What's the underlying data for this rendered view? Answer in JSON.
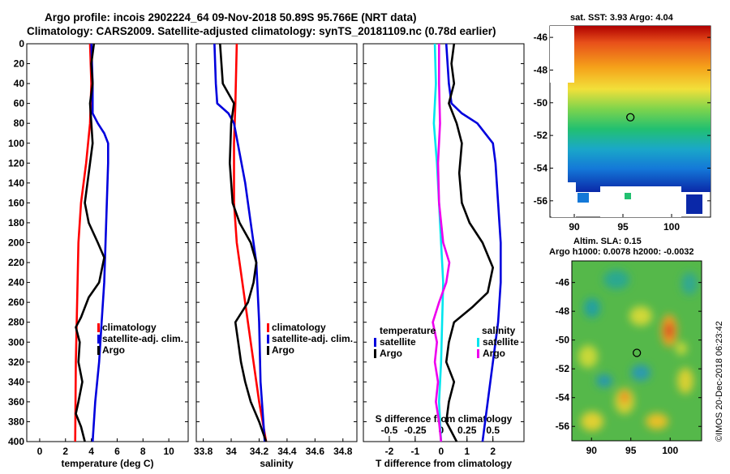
{
  "header": {
    "line1": "Argo profile: incois 2902224_64 09-Nov-2018 50.89S 95.766E (NRT data)",
    "line2": "Climatology: CARS2009. Satellite-adjusted climatology: synTS_20181109.nc (0.78d earlier)"
  },
  "colors": {
    "clim": "#ff0000",
    "sat": "#0000dd",
    "argo": "#000000",
    "sat_s": "#00e5ee",
    "magenta": "#ee00ee"
  },
  "chart_data": [
    {
      "type": "line",
      "name": "temperature",
      "xlabel": "temperature (deg C)",
      "ylabel": "depth",
      "xlim": [
        -1,
        11.5
      ],
      "ylim": [
        400,
        0
      ],
      "xticks": [
        "0",
        "2",
        "4",
        "6",
        "8",
        "10"
      ],
      "xtick_values": [
        0,
        2,
        4,
        6,
        8,
        10
      ],
      "yticks": [
        0,
        20,
        40,
        60,
        80,
        100,
        120,
        140,
        160,
        180,
        200,
        220,
        240,
        260,
        280,
        300,
        320,
        340,
        360,
        380,
        400
      ],
      "legend": [
        "climatology",
        "satellite-adj. clim.",
        "Argo"
      ],
      "series": [
        {
          "name": "climatology",
          "color": "clim",
          "points": [
            [
              3.9,
              0
            ],
            [
              4.0,
              40
            ],
            [
              3.9,
              80
            ],
            [
              3.6,
              120
            ],
            [
              3.2,
              160
            ],
            [
              3.0,
              200
            ],
            [
              2.9,
              260
            ],
            [
              2.8,
              320
            ],
            [
              2.75,
              400
            ]
          ]
        },
        {
          "name": "satellite-adj. clim.",
          "color": "sat",
          "points": [
            [
              4.0,
              0
            ],
            [
              4.1,
              40
            ],
            [
              4.1,
              70
            ],
            [
              4.5,
              80
            ],
            [
              5.0,
              90
            ],
            [
              5.3,
              100
            ],
            [
              5.3,
              120
            ],
            [
              5.2,
              160
            ],
            [
              5.1,
              200
            ],
            [
              5.0,
              240
            ],
            [
              4.8,
              280
            ],
            [
              4.6,
              320
            ],
            [
              4.3,
              360
            ],
            [
              4.1,
              400
            ]
          ]
        },
        {
          "name": "Argo",
          "color": "argo",
          "points": [
            [
              4.2,
              0
            ],
            [
              4.0,
              20
            ],
            [
              4.1,
              40
            ],
            [
              3.9,
              60
            ],
            [
              4.0,
              80
            ],
            [
              4.1,
              100
            ],
            [
              3.8,
              130
            ],
            [
              3.5,
              160
            ],
            [
              3.8,
              180
            ],
            [
              4.5,
              200
            ],
            [
              5.0,
              215
            ],
            [
              4.6,
              240
            ],
            [
              3.8,
              255
            ],
            [
              3.2,
              275
            ],
            [
              2.8,
              285
            ],
            [
              3.1,
              300
            ],
            [
              3.0,
              320
            ],
            [
              3.3,
              340
            ],
            [
              3.0,
              360
            ],
            [
              2.8,
              372
            ],
            [
              3.2,
              385
            ],
            [
              3.5,
              400
            ]
          ]
        }
      ]
    },
    {
      "type": "line",
      "name": "salinity",
      "xlabel": "salinity",
      "xlim": [
        33.75,
        34.9
      ],
      "ylim": [
        400,
        0
      ],
      "xticks": [
        "33.8",
        "34",
        "34.2",
        "34.4",
        "34.6",
        "34.8"
      ],
      "xtick_values": [
        33.8,
        34.0,
        34.2,
        34.4,
        34.6,
        34.8
      ],
      "legend": [
        "climatology",
        "satellite-adj. clim.",
        "Argo"
      ],
      "series": [
        {
          "name": "climatology",
          "color": "clim",
          "points": [
            [
              34.04,
              0
            ],
            [
              34.03,
              60
            ],
            [
              34.02,
              100
            ],
            [
              34.02,
              160
            ],
            [
              34.04,
              200
            ],
            [
              34.08,
              240
            ],
            [
              34.14,
              300
            ],
            [
              34.2,
              360
            ],
            [
              34.25,
              400
            ]
          ]
        },
        {
          "name": "satellite-adj. clim.",
          "color": "sat",
          "points": [
            [
              33.88,
              0
            ],
            [
              33.89,
              40
            ],
            [
              33.9,
              60
            ],
            [
              33.98,
              70
            ],
            [
              34.02,
              80
            ],
            [
              34.06,
              110
            ],
            [
              34.1,
              140
            ],
            [
              34.14,
              180
            ],
            [
              34.18,
              220
            ],
            [
              34.2,
              280
            ],
            [
              34.21,
              340
            ],
            [
              34.24,
              400
            ]
          ]
        },
        {
          "name": "Argo",
          "color": "argo",
          "points": [
            [
              33.92,
              0
            ],
            [
              33.93,
              20
            ],
            [
              33.94,
              40
            ],
            [
              34.02,
              60
            ],
            [
              34.0,
              80
            ],
            [
              33.99,
              120
            ],
            [
              34.01,
              160
            ],
            [
              34.06,
              180
            ],
            [
              34.14,
              200
            ],
            [
              34.18,
              220
            ],
            [
              34.16,
              240
            ],
            [
              34.12,
              260
            ],
            [
              34.03,
              280
            ],
            [
              34.05,
              300
            ],
            [
              34.07,
              320
            ],
            [
              34.1,
              340
            ],
            [
              34.14,
              360
            ],
            [
              34.2,
              380
            ],
            [
              34.25,
              400
            ]
          ]
        }
      ]
    },
    {
      "type": "line",
      "name": "difference from climatology",
      "xlabel": "T difference from climatology",
      "secondary_xlabel": "S difference from climatology",
      "xlim": [
        -3,
        3.2
      ],
      "ylim": [
        400,
        0
      ],
      "xticks": [
        "-2",
        "-1",
        "0",
        "1",
        "2"
      ],
      "xtick_values": [
        -2,
        -1,
        0,
        1,
        2
      ],
      "secondary_xticks": [
        "-0.5",
        "-0.25",
        "0",
        "0.25",
        "0.5"
      ],
      "secondary_xtick_values": [
        -0.5,
        -0.25,
        0,
        0.25,
        0.5
      ],
      "secondary_xlim": [
        -0.75,
        0.8
      ],
      "legend_left": {
        "title": "temperature",
        "items": [
          "satellite",
          "Argo"
        ]
      },
      "legend_right": {
        "title": "salinity",
        "items": [
          "satellite",
          "Argo"
        ]
      },
      "series": [
        {
          "name": "temperature satellite",
          "color": "sat",
          "points": [
            [
              0.2,
              0
            ],
            [
              0.3,
              40
            ],
            [
              0.4,
              60
            ],
            [
              0.8,
              70
            ],
            [
              1.4,
              80
            ],
            [
              2.0,
              100
            ],
            [
              2.1,
              120
            ],
            [
              2.2,
              160
            ],
            [
              2.3,
              200
            ],
            [
              2.3,
              240
            ],
            [
              2.2,
              280
            ],
            [
              2.0,
              320
            ],
            [
              1.8,
              360
            ],
            [
              1.6,
              400
            ]
          ]
        },
        {
          "name": "temperature Argo",
          "color": "argo",
          "points": [
            [
              0.5,
              0
            ],
            [
              0.4,
              20
            ],
            [
              0.5,
              40
            ],
            [
              0.3,
              60
            ],
            [
              0.6,
              80
            ],
            [
              0.8,
              100
            ],
            [
              0.7,
              130
            ],
            [
              0.8,
              160
            ],
            [
              1.1,
              180
            ],
            [
              1.6,
              200
            ],
            [
              2.0,
              225
            ],
            [
              1.8,
              250
            ],
            [
              1.2,
              265
            ],
            [
              0.5,
              280
            ],
            [
              0.3,
              300
            ],
            [
              0.2,
              320
            ],
            [
              0.5,
              340
            ],
            [
              0.3,
              360
            ],
            [
              0.2,
              380
            ],
            [
              0.6,
              400
            ]
          ]
        },
        {
          "name": "salinity satellite",
          "color": "sat_s",
          "points": [
            [
              -0.06,
              0
            ],
            [
              -0.05,
              40
            ],
            [
              -0.07,
              80
            ],
            [
              -0.04,
              120
            ],
            [
              -0.02,
              160
            ],
            [
              0.0,
              200
            ],
            [
              0.02,
              240
            ],
            [
              0.01,
              280
            ],
            [
              0.0,
              320
            ],
            [
              -0.02,
              360
            ],
            [
              0.0,
              400
            ]
          ]
        },
        {
          "name": "salinity Argo",
          "color": "magenta",
          "points": [
            [
              -0.02,
              0
            ],
            [
              -0.02,
              40
            ],
            [
              -0.01,
              80
            ],
            [
              -0.03,
              120
            ],
            [
              -0.02,
              160
            ],
            [
              0.02,
              200
            ],
            [
              0.08,
              220
            ],
            [
              0.05,
              240
            ],
            [
              -0.02,
              260
            ],
            [
              -0.08,
              280
            ],
            [
              -0.04,
              300
            ],
            [
              -0.06,
              320
            ],
            [
              -0.03,
              340
            ],
            [
              -0.05,
              360
            ],
            [
              -0.02,
              380
            ],
            [
              0.0,
              400
            ]
          ]
        }
      ]
    }
  ],
  "sst_map": {
    "title": "sat. SST: 3.93 Argo: 4.04",
    "yticks": [
      "-46",
      "-48",
      "-50",
      "-52",
      "-54",
      "-56"
    ],
    "ytick_values": [
      -46,
      -48,
      -50,
      -52,
      -54,
      -56
    ],
    "xticks": [
      "90",
      "95",
      "100"
    ],
    "xtick_values": [
      90,
      95,
      100
    ],
    "lon_range": [
      87.5,
      104
    ],
    "lat_range": [
      -57,
      -45.3
    ],
    "argo_lon": 95.766,
    "argo_lat": -50.89
  },
  "sla_map": {
    "title1": "Altim. SLA: 0.15",
    "title2": "Argo h1000: 0.0078 h2000: -0.0032",
    "yticks": [
      "-46",
      "-48",
      "-50",
      "-52",
      "-54",
      "-56"
    ],
    "ytick_values": [
      -46,
      -48,
      -50,
      -52,
      -54,
      -56
    ],
    "xticks": [
      "90",
      "95",
      "100"
    ],
    "xtick_values": [
      90,
      95,
      100
    ],
    "lon_range": [
      87.5,
      104
    ],
    "lat_range": [
      -57,
      -44.5
    ],
    "argo_lon": 95.766,
    "argo_lat": -50.89
  },
  "stamp": "©IMOS 20-Dec-2018 06:23:42"
}
